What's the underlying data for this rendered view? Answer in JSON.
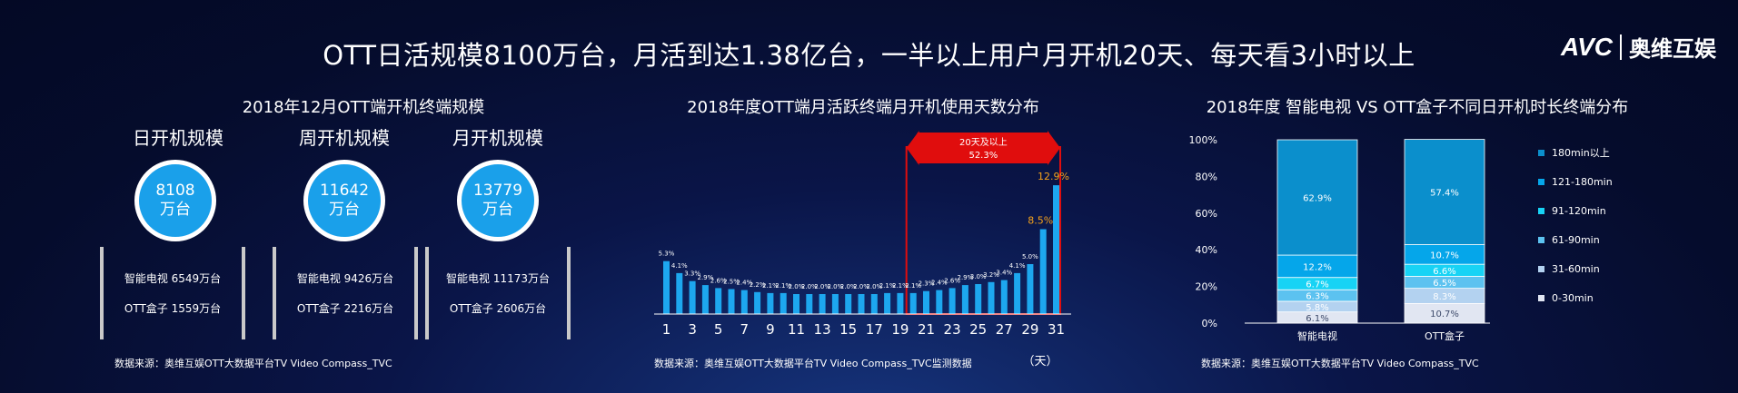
{
  "header": {
    "title": "OTT日活规模8100万台，月活到达1.38亿台，一半以上用户月开机20天、每天看3小时以上"
  },
  "logo": {
    "mark": "AVC",
    "name": "奥维互娱"
  },
  "left": {
    "title": "2018年12月OTT端开机终端规模",
    "panels": [
      {
        "label": "日开机规模",
        "value": "8108",
        "unit": "万台",
        "lines": [
          "智能电视 6549万台",
          "OTT盒子 1559万台"
        ]
      },
      {
        "label": "周开机规模",
        "value": "11642",
        "unit": "万台",
        "lines": [
          "智能电视 9426万台",
          "OTT盒子 2216万台"
        ]
      },
      {
        "label": "月开机规模",
        "value": "13779",
        "unit": "万台",
        "lines": [
          "智能电视 11173万台",
          "OTT盒子 2606万台"
        ]
      }
    ],
    "source": "数据来源：奥维互娱OTT大数据平台TV Video Compass_TVC"
  },
  "middle": {
    "source": "数据来源：奥维互娱OTT大数据平台TV Video Compass_TVC监测数据",
    "highlight_label_1": "20天及以上",
    "highlight_label_2": "52.3%"
  },
  "right": {
    "source": "数据来源：奥维互娱OTT大数据平台TV Video Compass_TVC"
  },
  "colors": {
    "bar": "#1da7ef",
    "highlight": "#e00d0d",
    "orange": "#f5a21b"
  },
  "chart_data": [
    {
      "type": "bar",
      "title": "2018年度OTT端月活跃终端月开机使用天数分布",
      "x_unit": "（天）",
      "categories": [
        1,
        2,
        3,
        4,
        5,
        6,
        7,
        8,
        9,
        10,
        11,
        12,
        13,
        14,
        15,
        16,
        17,
        18,
        19,
        20,
        21,
        22,
        23,
        24,
        25,
        26,
        27,
        28,
        29,
        30,
        31
      ],
      "x_tick_labels": [
        "1",
        "3",
        "5",
        "7",
        "9",
        "11",
        "13",
        "15",
        "17",
        "19",
        "21",
        "23",
        "25",
        "27",
        "29",
        "31"
      ],
      "values": [
        5.3,
        4.1,
        3.3,
        2.9,
        2.6,
        2.5,
        2.4,
        2.2,
        2.1,
        2.1,
        2.0,
        2.0,
        2.0,
        2.0,
        2.0,
        2.0,
        2.0,
        2.1,
        2.1,
        2.1,
        2.3,
        2.4,
        2.6,
        2.9,
        3.0,
        3.2,
        3.4,
        4.1,
        5.0,
        8.5,
        12.9
      ],
      "data_labels": [
        "5.3%",
        "4.1%",
        "3.3%",
        "2.9%",
        "2.6%",
        "2.5%",
        "2.4%",
        "2.2%",
        "2.1%",
        "2.1%",
        "2.0%",
        "2.0%",
        "2.0%",
        "2.0%",
        "2.0%",
        "2.0%",
        "2.0%",
        "2.1%",
        "2.1%",
        "2.1%",
        "2.3%",
        "2.4%",
        "2.6%",
        "2.9%",
        "3.0%",
        "3.2%",
        "3.4%",
        "4.1%",
        "5.0%",
        "8.5%",
        "12.9%"
      ],
      "ylim": [
        0,
        14
      ],
      "highlight_range": [
        20,
        31
      ]
    },
    {
      "type": "bar",
      "stacked": "percent",
      "title": "2018年度 智能电视  VS OTT盒子不同日开机时长终端分布",
      "categories": [
        "智能电视",
        "OTT盒子"
      ],
      "y_ticks": [
        "0%",
        "20%",
        "40%",
        "60%",
        "80%",
        "100%"
      ],
      "legend_position": "right",
      "series": [
        {
          "name": "0-30min",
          "color": "#e1e6f2",
          "values": [
            6.1,
            10.7
          ]
        },
        {
          "name": "31-60min",
          "color": "#b3d2f0",
          "values": [
            5.8,
            8.3
          ]
        },
        {
          "name": "61-90min",
          "color": "#5cc2f0",
          "values": [
            6.3,
            6.5
          ]
        },
        {
          "name": "91-120min",
          "color": "#17d3f5",
          "values": [
            6.7,
            6.6
          ]
        },
        {
          "name": "121-180min",
          "color": "#05a6ea",
          "values": [
            12.2,
            10.7
          ]
        },
        {
          "name": "180min以上",
          "color": "#0b8fcc",
          "values": [
            62.9,
            57.4
          ]
        }
      ]
    }
  ]
}
